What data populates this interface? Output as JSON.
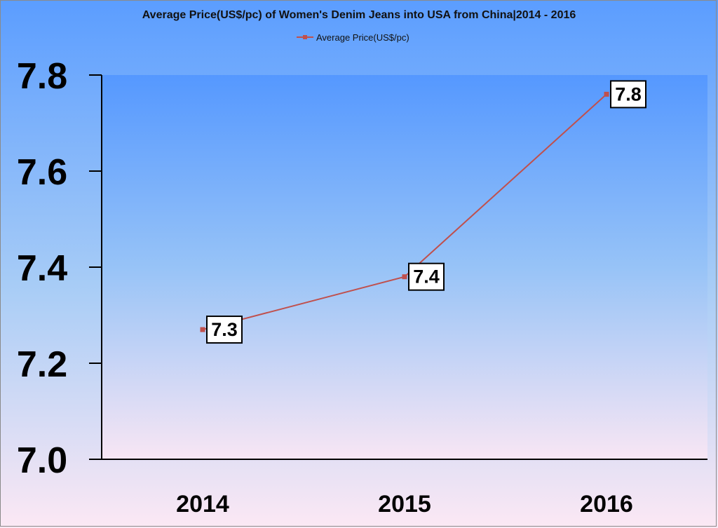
{
  "chart_data": {
    "type": "line",
    "title": "Average Price(US$/pc) of Women's Denim Jeans into USA from China|2014 - 2016",
    "categories": [
      "2014",
      "2015",
      "2016"
    ],
    "series": [
      {
        "name": "Average Price(US$/pc)",
        "values": [
          7.27,
          7.38,
          7.76
        ],
        "labels": [
          "7.3",
          "7.4",
          "7.8"
        ]
      }
    ],
    "ylim": [
      7.0,
      7.8
    ],
    "yticks": [
      "7.0",
      "7.2",
      "7.4",
      "7.6",
      "7.8"
    ],
    "xlabel": "",
    "ylabel": "",
    "grid": false,
    "legend_position": "top",
    "colors": {
      "line": "#c0504d",
      "background_top": "#5b9dff",
      "background_bottom": "#fce8f4",
      "axis": "#000000",
      "label_box": "#ffffff"
    }
  }
}
